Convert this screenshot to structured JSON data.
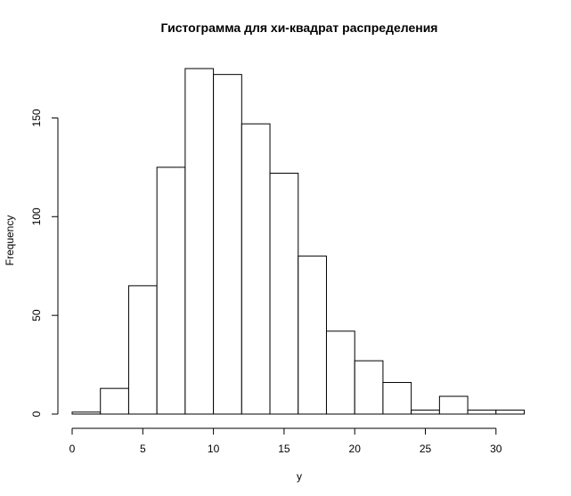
{
  "chart_data": {
    "type": "bar",
    "title": "Гистограмма для хи-квадрат распределения",
    "xlabel": "y",
    "ylabel": "Frequency",
    "bin_edges": [
      0,
      2,
      4,
      6,
      8,
      10,
      12,
      14,
      16,
      18,
      20,
      22,
      24,
      26,
      28,
      30,
      32
    ],
    "values": [
      1,
      13,
      65,
      125,
      175,
      172,
      147,
      122,
      80,
      42,
      27,
      16,
      2,
      9,
      2,
      2
    ],
    "xlim": [
      0,
      32
    ],
    "ylim": [
      0,
      175
    ],
    "x_ticks": [
      0,
      5,
      10,
      15,
      20,
      25,
      30
    ],
    "y_ticks": [
      0,
      50,
      100,
      150
    ],
    "grid": false,
    "legend": "none"
  }
}
